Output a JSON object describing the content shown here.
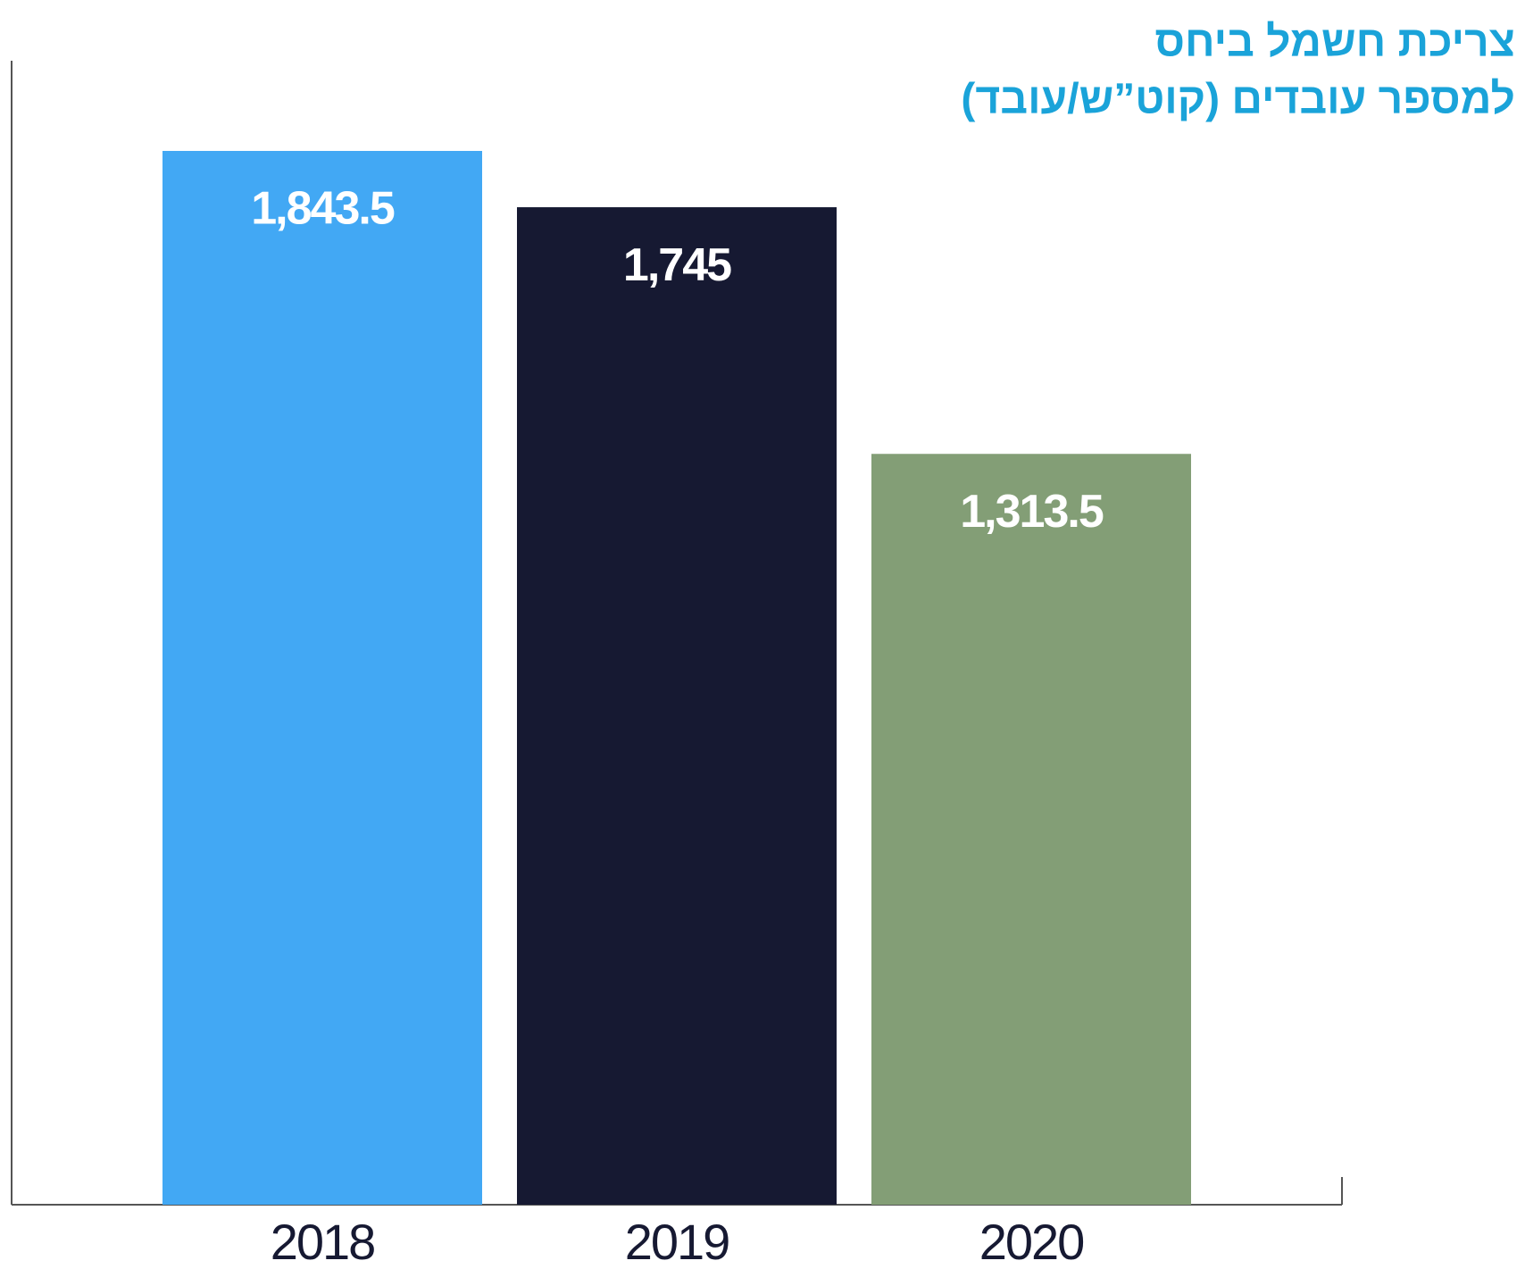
{
  "chart_data": {
    "type": "bar",
    "title": [
      "צריכת חשמל ביחס",
      "למספר עובדים (קוט”ש/עובד)"
    ],
    "categories": [
      "2018",
      "2019",
      "2020"
    ],
    "values": [
      1843.5,
      1745,
      1313.5
    ],
    "value_labels": [
      "1,843.5",
      "1,745",
      "1,313.5"
    ],
    "colors": [
      "#42a8f4",
      "#161932",
      "#839e76"
    ]
  }
}
